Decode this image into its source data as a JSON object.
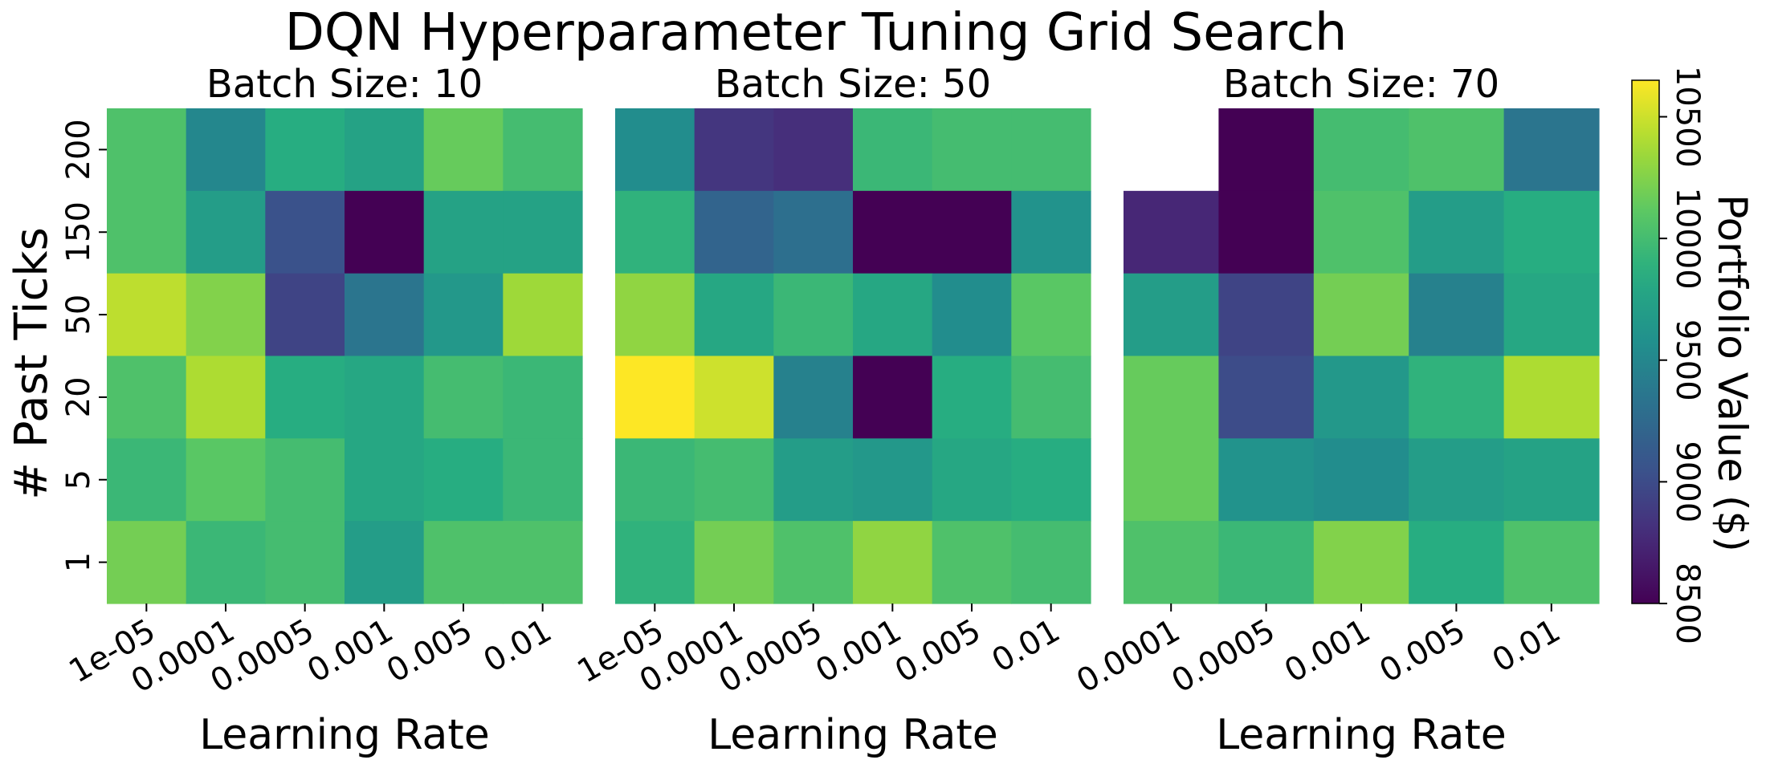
{
  "chart_data": {
    "type": "heatmap",
    "title": "DQN Hyperparameter Tuning Grid Search",
    "ylabel": "# Past Ticks",
    "y_categories": [
      "200",
      "150",
      "50",
      "20",
      "5",
      "1"
    ],
    "colorbar": {
      "label": "Portfolio Value ($)",
      "range": [
        8500,
        10650
      ],
      "ticks": [
        8500,
        9000,
        9500,
        10000,
        10500
      ],
      "colormap": "viridis"
    },
    "panels": [
      {
        "title": "Batch Size: 10",
        "xlabel": "Learning Rate",
        "x_categories": [
          "1e-05",
          "0.0001",
          "0.0005",
          "0.001",
          "0.005",
          "0.01"
        ],
        "values": [
          [
            10050,
            9500,
            9850,
            9750,
            10150,
            10000
          ],
          [
            10050,
            9700,
            9050,
            8500,
            9750,
            9750
          ],
          [
            10450,
            10250,
            8950,
            9350,
            9650,
            10350
          ],
          [
            10050,
            10400,
            9850,
            9800,
            10000,
            9950
          ],
          [
            9950,
            10100,
            10000,
            9800,
            9850,
            9950
          ],
          [
            10200,
            9950,
            10000,
            9700,
            10050,
            10050
          ]
        ]
      },
      {
        "title": "Batch Size: 50",
        "xlabel": "Learning Rate",
        "x_categories": [
          "1e-05",
          "0.0001",
          "0.0005",
          "0.001",
          "0.005",
          "0.01"
        ],
        "values": [
          [
            9550,
            8850,
            8800,
            9950,
            10000,
            10000
          ],
          [
            9900,
            9200,
            9300,
            8500,
            8500,
            9600
          ],
          [
            10300,
            9800,
            9950,
            9800,
            9550,
            10100
          ],
          [
            10650,
            10500,
            9450,
            8500,
            9850,
            10000
          ],
          [
            9950,
            10000,
            9700,
            9650,
            9800,
            9850
          ],
          [
            9900,
            10200,
            10050,
            10300,
            10050,
            10000
          ]
        ]
      },
      {
        "title": "Batch Size: 70",
        "xlabel": "Learning Rate",
        "x_categories": [
          "0.0001",
          "0.0005",
          "0.001",
          "0.005",
          "0.01"
        ],
        "values": [
          [
            null,
            8500,
            10000,
            10050,
            9350
          ],
          [
            8750,
            8500,
            10050,
            9700,
            9850
          ],
          [
            9700,
            8950,
            10200,
            9450,
            9800
          ],
          [
            10150,
            9000,
            9650,
            9900,
            10400
          ],
          [
            10150,
            9600,
            9550,
            9700,
            9750
          ],
          [
            10050,
            9950,
            10250,
            9850,
            10050
          ]
        ]
      }
    ]
  }
}
